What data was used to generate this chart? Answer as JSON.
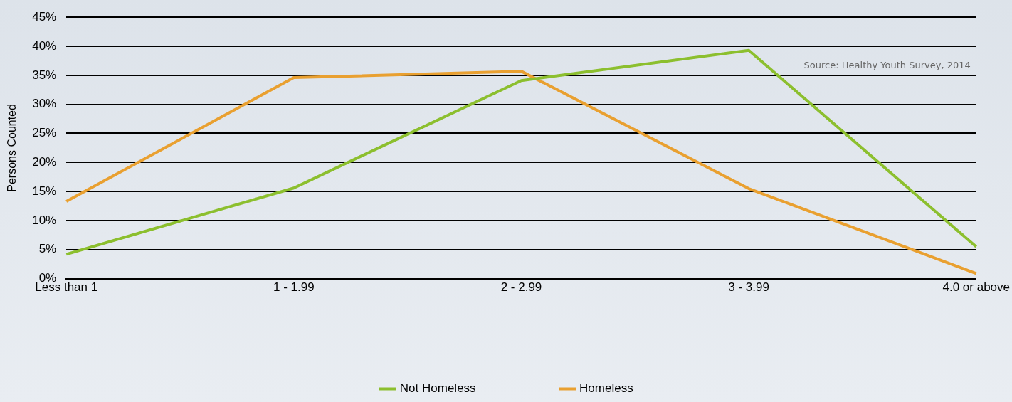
{
  "chart_data": {
    "type": "line",
    "ylabel": "Persons Counted",
    "categories": [
      "Less than 1",
      "1 - 1.99",
      "2 - 2.99",
      "3 - 3.99",
      "4.0 or above"
    ],
    "series": [
      {
        "name": "Not Homeless",
        "color": "#8cbf2e",
        "values": [
          4.2,
          15.6,
          34.1,
          39.3,
          5.5
        ]
      },
      {
        "name": "Homeless",
        "color": "#e9a030",
        "values": [
          13.3,
          34.6,
          35.7,
          15.5,
          0.9
        ]
      }
    ],
    "ylim": [
      0,
      45
    ],
    "yticks": [
      {
        "value": 0,
        "label": "0%"
      },
      {
        "value": 5,
        "label": "5%"
      },
      {
        "value": 10,
        "label": "10%"
      },
      {
        "value": 15,
        "label": "15%"
      },
      {
        "value": 20,
        "label": "20%"
      },
      {
        "value": 25,
        "label": "25%"
      },
      {
        "value": 30,
        "label": "30%"
      },
      {
        "value": 35,
        "label": "35%"
      },
      {
        "value": 40,
        "label": "40%"
      },
      {
        "value": 45,
        "label": "45%"
      }
    ],
    "grid": "y",
    "legend": "bottom",
    "marker": "none",
    "line_style": "solid",
    "annotations": [
      "Source: Healthy Youth Survey, 2014"
    ]
  }
}
